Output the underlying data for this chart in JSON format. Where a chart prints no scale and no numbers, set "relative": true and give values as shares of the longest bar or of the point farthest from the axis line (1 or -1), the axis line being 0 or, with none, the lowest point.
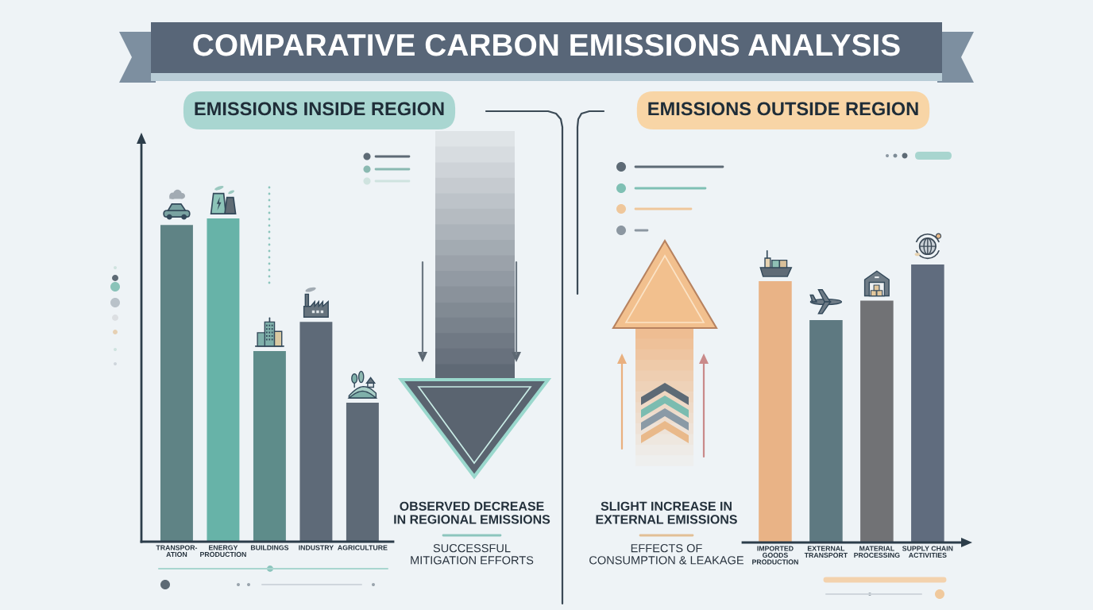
{
  "chart_data": [
    {
      "type": "bar",
      "title": "COMPARATIVE CARBON EMISSIONS ANALYSIS",
      "subtitle": "EMISSIONS INSIDE REGION",
      "categories": [
        "TRANSPOR-\nATION",
        "ENERGY\nPRODUCTION",
        "BUILDINGS",
        "INDUSTRY",
        "AGRICULTURE"
      ],
      "values": [
        0.98,
        1,
        0.59,
        0.68,
        0.43
      ],
      "colors": [
        "#5f8385",
        "#67b3a8",
        "#5e8c8a",
        "#5e6a78",
        "#5e6a77"
      ],
      "relative": true,
      "annotations": [
        "OBSERVED DECREASE\nIN REGIONAL EMISSIONS",
        "SUCCESSFUL\nMITIGATION EFFORTS"
      ]
    },
    {
      "type": "bar",
      "subtitle": "EMISSIONS OUTSIDE REGION",
      "categories": [
        "IMPORTED\nGOODS\nPRODUCTION",
        "EXTERNAL\nTRANSPORT",
        "MATERIAL\nPROCESSING",
        "SUPPLY CHAIN\nACTIVITIES"
      ],
      "values": [
        0.94,
        0.8,
        0.87,
        1
      ],
      "colors": [
        "#e9b386",
        "#5e7981",
        "#717275",
        "#606c7e"
      ],
      "relative": true,
      "annotations": [
        "SLIGHT INCREASE IN\nEXTERNAL EMISSIONS",
        "EFFECTS OF\nCONSUMPTION & LEAKAGE"
      ]
    }
  ]
}
